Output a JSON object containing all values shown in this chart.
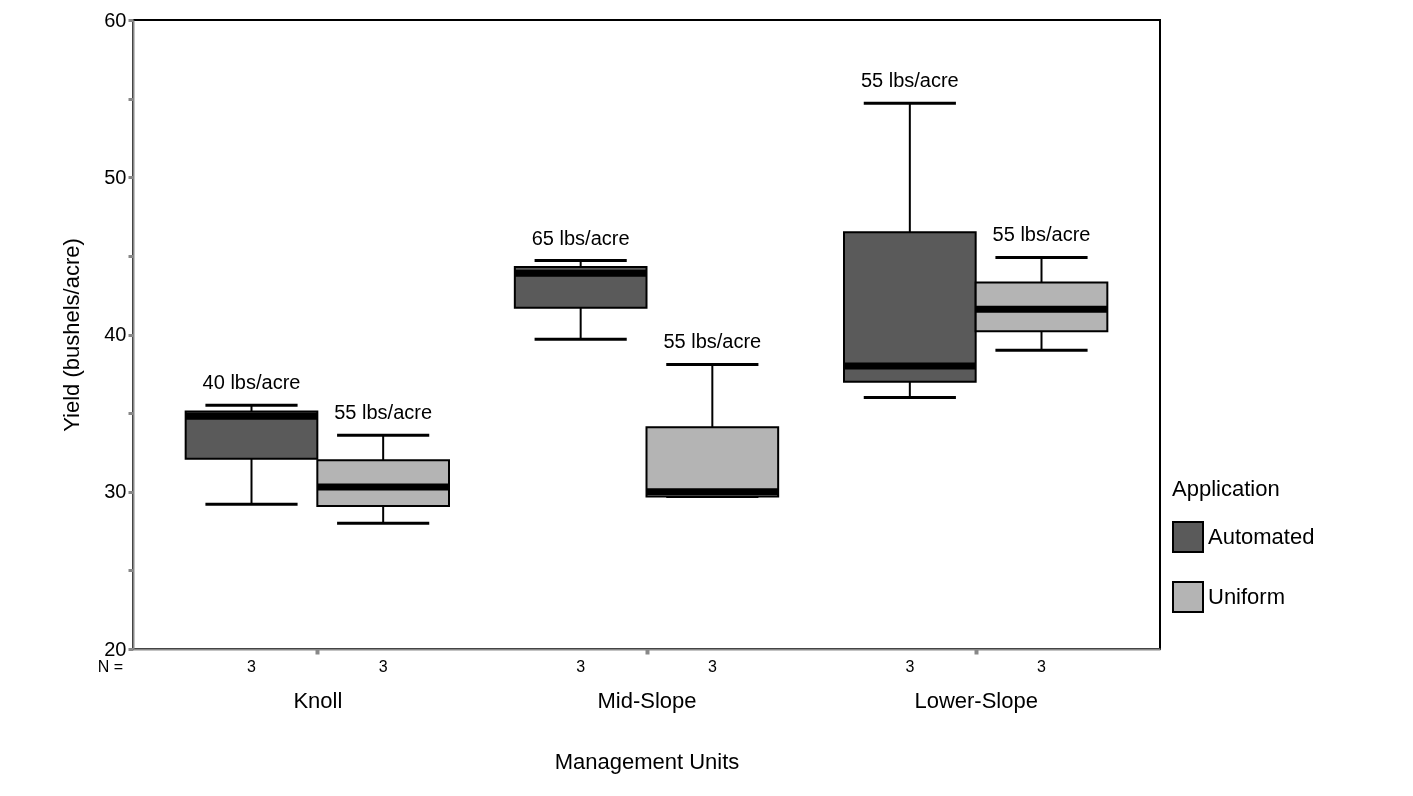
{
  "chart_data": {
    "type": "box",
    "xlabel": "Management Units",
    "ylabel": "Yield (bushels/acre)",
    "legend_title": "Application",
    "legend": "right",
    "categories": [
      "Knoll",
      "Mid-Slope",
      "Lower-Slope"
    ],
    "ylim": [
      20,
      60
    ],
    "yticks": [
      20,
      {
        "value": 25,
        "label": null
      },
      30,
      {
        "value": 35,
        "label": null
      },
      40,
      {
        "value": 45,
        "label": null
      },
      50,
      {
        "value": 55,
        "label": null
      },
      60
    ],
    "series": [
      {
        "name": "Automated",
        "color": "#5a5a5a",
        "value_labels": [
          "40 lbs/acre",
          "65 lbs/acre",
          "55 lbs/acre"
        ],
        "boxes": [
          {
            "low": 29.2,
            "q1": 32.1,
            "median": 34.8,
            "q3": 35.1,
            "high": 35.5
          },
          {
            "low": 39.7,
            "q1": 41.7,
            "median": 43.9,
            "q3": 44.3,
            "high": 44.7
          },
          {
            "low": 36.0,
            "q1": 37.0,
            "median": 38.0,
            "q3": 46.5,
            "high": 54.7
          }
        ]
      },
      {
        "name": "Uniform",
        "color": "#b4b4b4",
        "value_labels": [
          "55 lbs/acre",
          "55 lbs/acre",
          "55 lbs/acre"
        ],
        "boxes": [
          {
            "low": 28.0,
            "q1": 29.1,
            "median": 30.3,
            "q3": 32.0,
            "high": 33.6
          },
          {
            "low": 29.7,
            "q1": 29.7,
            "median": 30.0,
            "q3": 34.1,
            "high": 38.1
          },
          {
            "low": 39.0,
            "q1": 40.2,
            "median": 41.6,
            "q3": 43.3,
            "high": 44.9
          }
        ]
      }
    ],
    "annotations": [
      "N =",
      "3",
      "3",
      "3",
      "3",
      "3",
      "3"
    ]
  }
}
